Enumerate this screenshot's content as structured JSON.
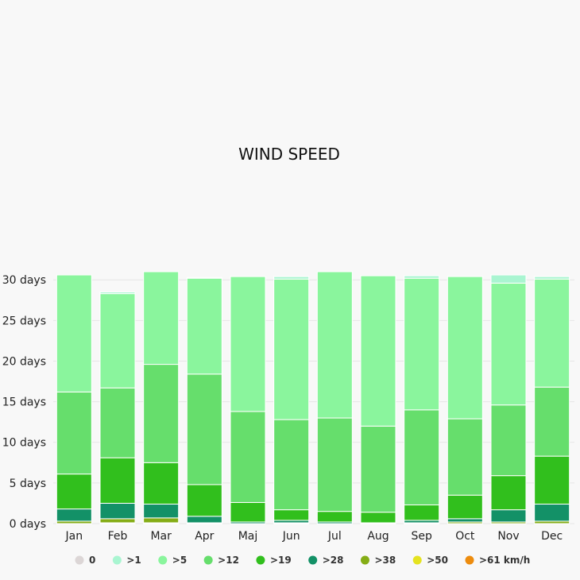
{
  "chart_data": {
    "type": "bar",
    "stacked": true,
    "title": "WIND SPEED",
    "categories": [
      "Jan",
      "Feb",
      "Mar",
      "Apr",
      "Maj",
      "Jun",
      "Jul",
      "Aug",
      "Sep",
      "Oct",
      "Nov",
      "Dec"
    ],
    "ylim": [
      0,
      31
    ],
    "yticks": [
      0,
      5,
      10,
      15,
      20,
      25,
      30
    ],
    "ytick_labels": [
      "0 days",
      "5 days",
      "10 days",
      "15 days",
      "20 days",
      "25 days",
      "30 days"
    ],
    "grid": true,
    "legend_position": "bottom",
    "series": [
      {
        "name": "0",
        "color": "#dcd6d6",
        "values": [
          0,
          0,
          0,
          0,
          0,
          0,
          0,
          0,
          0,
          0,
          0,
          0
        ]
      },
      {
        "name": ">1",
        "color": "#a9f5d1",
        "values": [
          0,
          0.2,
          0,
          0.1,
          0,
          0.3,
          0,
          0,
          0.3,
          0,
          1,
          0.3
        ]
      },
      {
        "name": ">5",
        "color": "#8af59d",
        "values": [
          14.4,
          11.6,
          11.4,
          11.8,
          16.6,
          17.3,
          18,
          18.5,
          16.2,
          17.5,
          15,
          13.3
        ]
      },
      {
        "name": ">12",
        "color": "#66de6c",
        "values": [
          10.1,
          8.6,
          12.1,
          13.6,
          11.2,
          11.1,
          11.5,
          10.6,
          11.7,
          9.4,
          8.7,
          8.5
        ]
      },
      {
        "name": ">19",
        "color": "#31bf1d",
        "values": [
          4.3,
          5.6,
          5.1,
          3.9,
          2.4,
          1.3,
          1.3,
          1.3,
          1.9,
          2.9,
          4.2,
          5.9
        ]
      },
      {
        "name": ">28",
        "color": "#139167",
        "values": [
          1.5,
          1.9,
          1.7,
          0.8,
          0.2,
          0.3,
          0.2,
          0.1,
          0.3,
          0.4,
          1.5,
          2.1
        ]
      },
      {
        "name": ">38",
        "color": "#85ad16",
        "values": [
          0.3,
          0.5,
          0.6,
          0.1,
          0,
          0.1,
          0,
          0,
          0.1,
          0.2,
          0.2,
          0.3
        ]
      },
      {
        "name": ">50",
        "color": "#e5e320",
        "values": [
          0,
          0.1,
          0.1,
          0,
          0,
          0,
          0,
          0,
          0,
          0,
          0,
          0
        ]
      },
      {
        "name": ">61 km/h",
        "color": "#ed8c0e",
        "values": [
          0,
          0,
          0,
          0,
          0,
          0,
          0,
          0,
          0,
          0,
          0,
          0
        ]
      }
    ]
  }
}
